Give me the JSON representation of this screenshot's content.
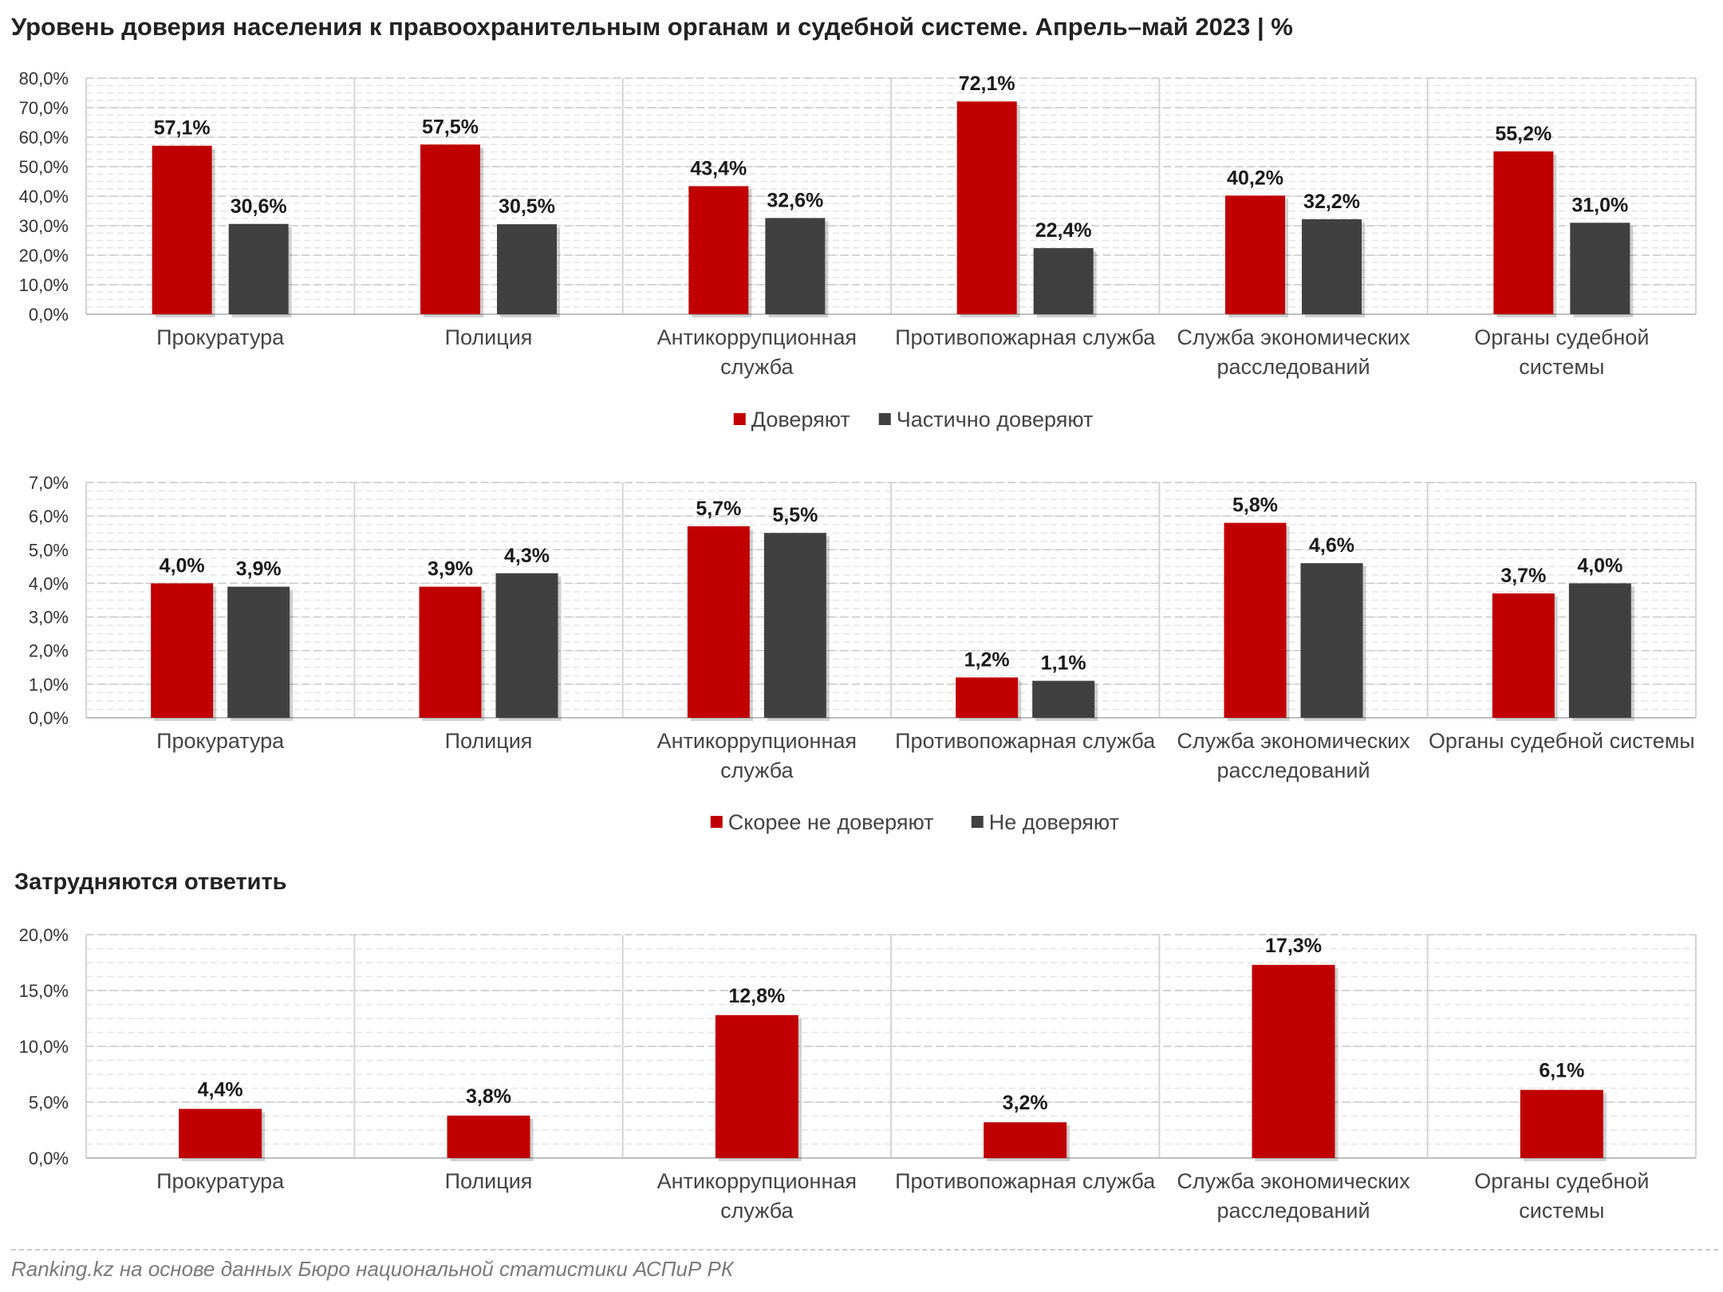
{
  "title": "Уровень доверия населения к правоохранительным органам и судебной системе. Апрель–май 2023 | %",
  "section_title": "Затрудняются ответить",
  "source": "Ranking.kz на основе данных Бюро национальной статистики АСПиР РК",
  "colors": {
    "red": "#c00000",
    "dark": "#404040"
  },
  "chart_data": [
    {
      "type": "bar",
      "title": "",
      "xlabel": "",
      "ylabel": "",
      "ylim": [
        0,
        80
      ],
      "yticks": [
        "0,0%",
        "10,0%",
        "20,0%",
        "30,0%",
        "40,0%",
        "50,0%",
        "60,0%",
        "70,0%",
        "80,0%"
      ],
      "categories": [
        [
          "Прокуратура"
        ],
        [
          "Полиция"
        ],
        [
          "Антикоррупционная",
          "служба"
        ],
        [
          "Противопожарная служба"
        ],
        [
          "Служба экономических",
          "расследований"
        ],
        [
          "Органы судебной",
          "системы"
        ]
      ],
      "series": [
        {
          "name": "Доверяют",
          "color": "#c00000",
          "values": [
            57.1,
            57.5,
            43.4,
            72.1,
            40.2,
            55.2
          ],
          "labels": [
            "57,1%",
            "57,5%",
            "43,4%",
            "72,1%",
            "40,2%",
            "55,2%"
          ]
        },
        {
          "name": "Частично доверяют",
          "color": "#404040",
          "values": [
            30.6,
            30.5,
            32.6,
            22.4,
            32.2,
            31.0
          ],
          "labels": [
            "30,6%",
            "30,5%",
            "32,6%",
            "22,4%",
            "32,2%",
            "31,0%"
          ]
        }
      ],
      "legend": "bottom",
      "grid": true
    },
    {
      "type": "bar",
      "title": "",
      "xlabel": "",
      "ylabel": "",
      "ylim": [
        0,
        7
      ],
      "yticks": [
        "0,0%",
        "1,0%",
        "2,0%",
        "3,0%",
        "4,0%",
        "5,0%",
        "6,0%",
        "7,0%"
      ],
      "categories": [
        [
          "Прокуратура"
        ],
        [
          "Полиция"
        ],
        [
          "Антикоррупционная",
          "служба"
        ],
        [
          "Противопожарная служба"
        ],
        [
          "Служба экономических",
          "расследований"
        ],
        [
          "Органы судебной системы"
        ]
      ],
      "series": [
        {
          "name": "Скорее не доверяют",
          "color": "#c00000",
          "values": [
            4.0,
            3.9,
            5.7,
            1.2,
            5.8,
            3.7
          ],
          "labels": [
            "4,0%",
            "3,9%",
            "5,7%",
            "1,2%",
            "5,8%",
            "3,7%"
          ]
        },
        {
          "name": "Не доверяют",
          "color": "#404040",
          "values": [
            3.9,
            4.3,
            5.5,
            1.1,
            4.6,
            4.0
          ],
          "labels": [
            "3,9%",
            "4,3%",
            "5,5%",
            "1,1%",
            "4,6%",
            "4,0%"
          ]
        }
      ],
      "legend": "bottom",
      "grid": true
    },
    {
      "type": "bar",
      "title": "Затрудняются ответить",
      "xlabel": "",
      "ylabel": "",
      "ylim": [
        0,
        20
      ],
      "yticks": [
        "0,0%",
        "5,0%",
        "10,0%",
        "15,0%",
        "20,0%"
      ],
      "categories": [
        [
          "Прокуратура"
        ],
        [
          "Полиция"
        ],
        [
          "Антикоррупционная",
          "служба"
        ],
        [
          "Противопожарная служба"
        ],
        [
          "Служба экономических",
          "расследований"
        ],
        [
          "Органы судебной",
          "системы"
        ]
      ],
      "series": [
        {
          "color": "#c00000",
          "values": [
            4.4,
            3.8,
            12.8,
            3.2,
            17.3,
            6.1
          ],
          "labels": [
            "4,4%",
            "3,8%",
            "12,8%",
            "3,2%",
            "17,3%",
            "6,1%"
          ]
        }
      ],
      "legend": "none",
      "grid": true
    }
  ]
}
